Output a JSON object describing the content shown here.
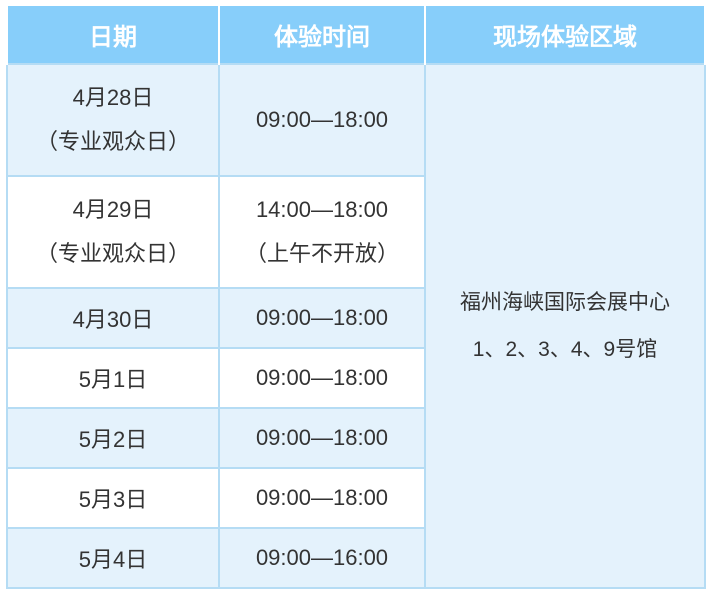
{
  "colors": {
    "header_bg": "#87CEFA",
    "row_alt_bg": "#E4F2FC",
    "border": "#B5DCF4",
    "header_text": "#FFFFFF",
    "body_text": "#333333"
  },
  "table": {
    "headers": [
      "日期",
      "体验时间",
      "现场体验区域"
    ],
    "rows": [
      {
        "date": "4月28日",
        "date_note": "（专业观众日）",
        "time": "09:00—18:00",
        "time_note": ""
      },
      {
        "date": "4月29日",
        "date_note": "（专业观众日）",
        "time": "14:00—18:00",
        "time_note": "（上午不开放）"
      },
      {
        "date": "4月30日",
        "date_note": "",
        "time": "09:00—18:00",
        "time_note": ""
      },
      {
        "date": "5月1日",
        "date_note": "",
        "time": "09:00—18:00",
        "time_note": ""
      },
      {
        "date": "5月2日",
        "date_note": "",
        "time": "09:00—18:00",
        "time_note": ""
      },
      {
        "date": "5月3日",
        "date_note": "",
        "time": "09:00—18:00",
        "time_note": ""
      },
      {
        "date": "5月4日",
        "date_note": "",
        "time": "09:00—16:00",
        "time_note": ""
      }
    ],
    "venue": {
      "line1": "福州海峡国际会展中心",
      "line2": "1、2、3、4、9号馆"
    }
  },
  "chart_data": {
    "type": "table",
    "title": "",
    "columns": [
      "日期",
      "体验时间",
      "现场体验区域"
    ],
    "rows": [
      [
        "4月28日（专业观众日）",
        "09:00—18:00",
        "福州海峡国际会展中心 1、2、3、4、9号馆"
      ],
      [
        "4月29日（专业观众日）",
        "14:00—18:00（上午不开放）",
        "福州海峡国际会展中心 1、2、3、4、9号馆"
      ],
      [
        "4月30日",
        "09:00—18:00",
        "福州海峡国际会展中心 1、2、3、4、9号馆"
      ],
      [
        "5月1日",
        "09:00—18:00",
        "福州海峡国际会展中心 1、2、3、4、9号馆"
      ],
      [
        "5月2日",
        "09:00—18:00",
        "福州海峡国际会展中心 1、2、3、4、9号馆"
      ],
      [
        "5月3日",
        "09:00—18:00",
        "福州海峡国际会展中心 1、2、3、4、9号馆"
      ],
      [
        "5月4日",
        "09:00—16:00",
        "福州海峡国际会展中心 1、2、3、4、9号馆"
      ]
    ],
    "layout_hints": {
      "header_style": "blue background, white bold text",
      "alternating_rows": "light blue / white, starting light blue",
      "venue_column": "single merged cell spanning all 7 rows"
    }
  }
}
